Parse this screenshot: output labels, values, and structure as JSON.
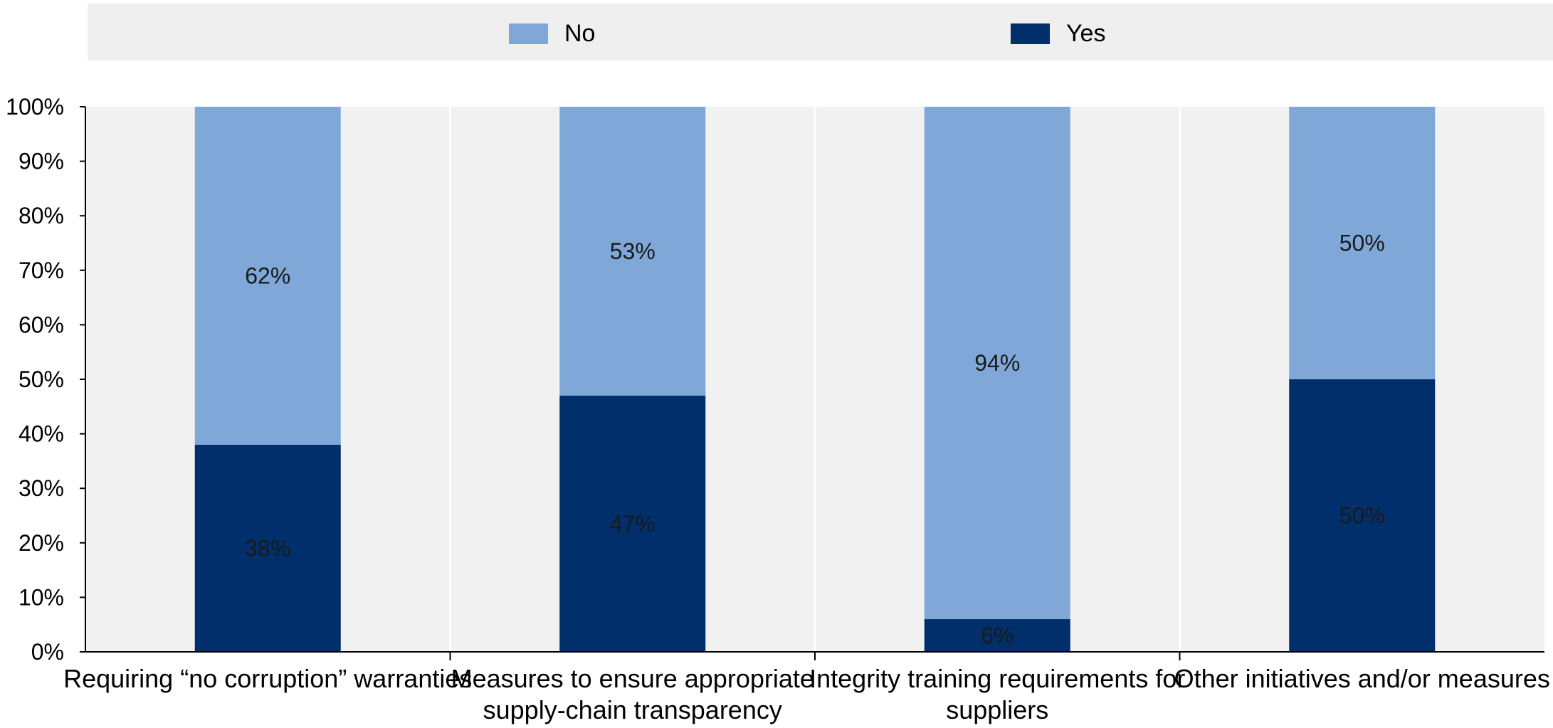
{
  "chart_data": {
    "type": "bar",
    "stacked": true,
    "categories": [
      [
        "Requiring “no corruption” warranties"
      ],
      [
        "Measures to ensure appropriate",
        "supply-chain transparency"
      ],
      [
        "Integrity training requirements for",
        "suppliers"
      ],
      [
        "Other initiatives and/or measures"
      ]
    ],
    "series": [
      {
        "name": "Yes",
        "values": [
          38,
          47,
          6,
          50
        ],
        "color": "#002f6c"
      },
      {
        "name": "No",
        "values": [
          62,
          53,
          94,
          50
        ],
        "color": "#7fa8d9"
      }
    ],
    "legend_order": [
      "No",
      "Yes"
    ],
    "legend_position": "top",
    "ylim": [
      0,
      100
    ],
    "y_ticks": [
      "0%",
      "10%",
      "20%",
      "30%",
      "40%",
      "50%",
      "60%",
      "70%",
      "80%",
      "90%",
      "100%"
    ],
    "value_suffix": "%",
    "grid": true,
    "xlabel": "",
    "ylabel": "",
    "title": ""
  }
}
